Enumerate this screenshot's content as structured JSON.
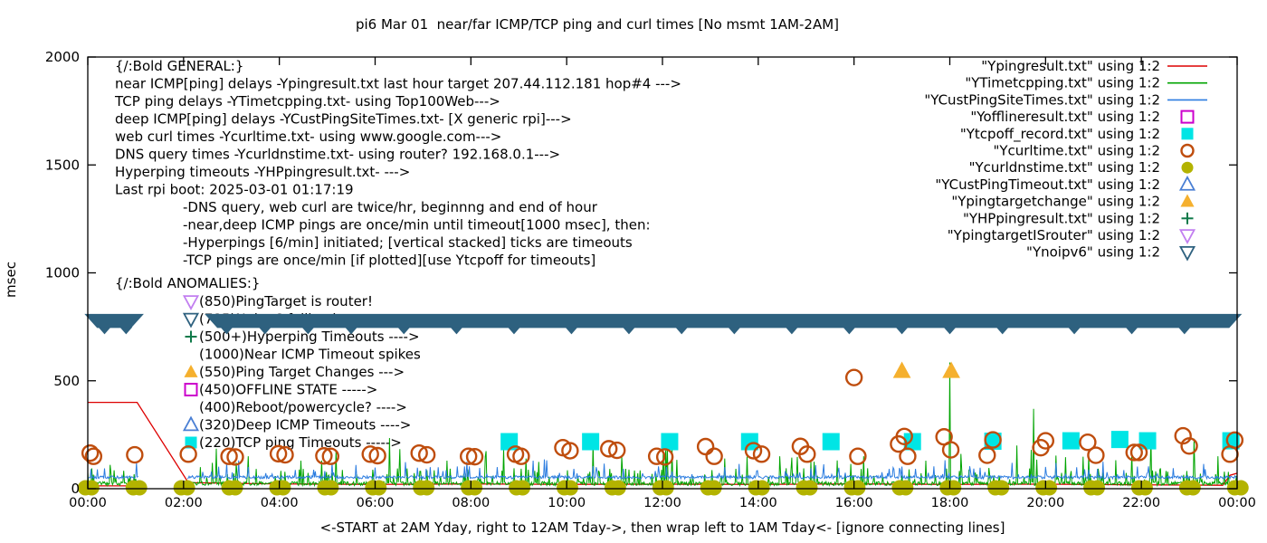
{
  "title": "pi6 Mar 01  near/far ICMP/TCP ping and curl times [No msmt 1AM-2AM]",
  "axes": {
    "ylabel": "msec",
    "xlabel": "<-START at 2AM Yday, right to 12AM Tday->, then wrap left to 1AM Tday<- [ignore connecting lines]",
    "y_ticks": [
      0,
      500,
      1000,
      1500,
      2000
    ],
    "x_tick_labels": [
      "00:00",
      "02:00",
      "04:00",
      "06:00",
      "08:00",
      "10:00",
      "12:00",
      "14:00",
      "16:00",
      "18:00",
      "20:00",
      "22:00",
      "00:00"
    ],
    "x_tick_hours": [
      0,
      2,
      4,
      6,
      8,
      10,
      12,
      14,
      16,
      18,
      20,
      22,
      24
    ]
  },
  "legend": [
    {
      "label": "\"Ypingresult.txt\" using 1:2",
      "marker": "line",
      "color": "#dd0000"
    },
    {
      "label": "\"YTimetcpping.txt\" using 1:2",
      "marker": "line",
      "color": "#00a400"
    },
    {
      "label": "\"YCustPingSiteTimes.txt\" using 1:2",
      "marker": "line",
      "color": "#2b7ce0"
    },
    {
      "label": "\"Yofflineresult.txt\" using 1:2",
      "marker": "square-open",
      "color": "#cc00cc"
    },
    {
      "label": "\"Ytcpoff_record.txt\" using 1:2",
      "marker": "square-fill",
      "color": "#00e5e5"
    },
    {
      "label": "\"Ycurltime.txt\" using 1:2",
      "marker": "circle-open",
      "color": "#bf4d0d"
    },
    {
      "label": "\"Ycurldnstime.txt\" using 1:2",
      "marker": "circle-fill",
      "color": "#b3b300"
    },
    {
      "label": "\"YCustPingTimeout.txt\" using 1:2",
      "marker": "tri-up-open",
      "color": "#4a7fd4"
    },
    {
      "label": "\"Ypingtargetchange\" using 1:2",
      "marker": "tri-up-fill",
      "color": "#f5b02e"
    },
    {
      "label": "\"YHPpingresult.txt\" using 1:2",
      "marker": "plus",
      "color": "#0f7a4a"
    },
    {
      "label": "\"YpingtargetISrouter\" using 1:2",
      "marker": "tri-down-open",
      "color": "#c27ff0"
    },
    {
      "label": "\"Ynoipv6\" using 1:2",
      "marker": "tri-down-open",
      "color": "#2e617f"
    }
  ],
  "notes_general": {
    "header": "{/:Bold GENERAL:}",
    "lines": [
      "near ICMP[ping] delays -Ypingresult.txt last hour target 207.44.112.181 hop#4 --->",
      "TCP ping delays -YTimetcpping.txt- using Top100Web--->",
      "deep ICMP[ping] delays -YCustPingSiteTimes.txt- [X generic rpi]--->",
      "web curl times -Ycurltime.txt- using www.google.com--->",
      "DNS query times -Ycurldnstime.txt- using router? 192.168.0.1--->",
      "Hyperping timeouts -YHPpingresult.txt- --->",
      "Last rpi boot: 2025-03-01 01:17:19"
    ],
    "sub_lines": [
      "-DNS query, web curl are twice/hr, beginnng and end of hour",
      "-near,deep ICMP pings are once/min until timeout[1000 msec], then:",
      "  -Hyperpings [6/min] initiated; [vertical stacked] ticks are timeouts",
      "-TCP pings are once/min [if plotted][use Ytcpoff for timeouts]"
    ]
  },
  "notes_anomalies": {
    "header": "{/:Bold ANOMALIES:}",
    "items": [
      {
        "marker": "tri-down-open",
        "color": "#c27ff0",
        "text": "(850)PingTarget is router!"
      },
      {
        "marker": "tri-down-open",
        "color": "#2e617f",
        "text": "(785)Noipv6 fallback",
        "obscured_by_band": true
      },
      {
        "marker": "plus",
        "color": "#0f7a4a",
        "text": "(500+)Hyperping Timeouts ---->"
      },
      {
        "marker": "none",
        "color": "#000000",
        "text": "(1000)Near ICMP Timeout spikes"
      },
      {
        "marker": "tri-up-fill",
        "color": "#f5b02e",
        "text": "(550)Ping Target Changes --->"
      },
      {
        "marker": "square-open",
        "color": "#cc00cc",
        "text": "(450)OFFLINE STATE ----->"
      },
      {
        "marker": "none",
        "color": "#000000",
        "text": "(400)Reboot/powercycle? ---->"
      },
      {
        "marker": "tri-up-open",
        "color": "#4a7fd4",
        "text": "(320)Deep ICMP Timeouts ---->"
      },
      {
        "marker": "square-fill",
        "color": "#00e5e5",
        "text": "(220)TCP ping Timeouts ----->"
      }
    ]
  },
  "chart_data": {
    "type": "line",
    "x_unit": "hours (00:00 - 24:00)",
    "xlim": [
      0,
      24
    ],
    "ylim": [
      0,
      2000
    ],
    "grid": false,
    "legend_position": "top-right",
    "no_measurement_gap_hours": [
      1.05,
      2.08
    ],
    "noise_seed": 7,
    "series": [
      {
        "name": "Ypingresult.txt",
        "style": "line",
        "color": "#dd0000",
        "points": [
          [
            0,
            400
          ],
          [
            1.03,
            400
          ],
          [
            2.1,
            28
          ],
          [
            4,
            22
          ],
          [
            6,
            20
          ],
          [
            8,
            22
          ],
          [
            10,
            20
          ],
          [
            12,
            21
          ],
          [
            14,
            20
          ],
          [
            16,
            22
          ],
          [
            18,
            20
          ],
          [
            20,
            21
          ],
          [
            22,
            18
          ],
          [
            23.7,
            16
          ],
          [
            23.85,
            62
          ],
          [
            24,
            72
          ]
        ],
        "baseline_extra": [
          [
            0,
            13
          ],
          [
            1.0,
            13
          ]
        ]
      },
      {
        "name": "YTimetcpping.txt",
        "style": "noisy-line",
        "color": "#00a400",
        "noise": {
          "base": 15,
          "jitter": 18,
          "spike_prob": 0.1,
          "spike_base": 40,
          "spike_jitter": 55,
          "burst_prob": 0.015,
          "burst_base": 90,
          "burst_jitter": 100
        },
        "spikes": [
          [
            2.6,
            120
          ],
          [
            3.35,
            150
          ],
          [
            4.45,
            130
          ],
          [
            6.3,
            235
          ],
          [
            7.5,
            130
          ],
          [
            8.3,
            148
          ],
          [
            9.15,
            140
          ],
          [
            10.55,
            215
          ],
          [
            11.15,
            150
          ],
          [
            12.1,
            212
          ],
          [
            13.3,
            140
          ],
          [
            14.45,
            150
          ],
          [
            15.1,
            125
          ],
          [
            16.2,
            150
          ],
          [
            17.5,
            130
          ],
          [
            18.0,
            585
          ],
          [
            19.4,
            200
          ],
          [
            19.75,
            370
          ],
          [
            20.9,
            160
          ],
          [
            21.8,
            170
          ],
          [
            22.2,
            235
          ],
          [
            23.1,
            232
          ],
          [
            23.6,
            150
          ]
        ]
      },
      {
        "name": "YCustPingSiteTimes.txt",
        "style": "noisy-line",
        "color": "#2b7ce0",
        "noise": {
          "base": 46,
          "jitter": 14,
          "spike_prob": 0.08,
          "spike_base": 66,
          "spike_jitter": 38,
          "burst_prob": 0.012,
          "burst_base": 95,
          "burst_jitter": 45
        },
        "spikes": [
          [
            2.9,
            120
          ],
          [
            5.6,
            110
          ],
          [
            9.3,
            130
          ],
          [
            13.6,
            115
          ],
          [
            17.9,
            132
          ],
          [
            19.3,
            120
          ],
          [
            21.2,
            125
          ],
          [
            23.3,
            115
          ]
        ]
      },
      {
        "name": "Yofflineresult.txt",
        "style": "points",
        "marker": "square-open",
        "color": "#cc00cc",
        "points": []
      },
      {
        "name": "Ytcpoff_record.txt",
        "style": "points",
        "marker": "square-fill",
        "color": "#00e5e5",
        "size": 19,
        "points": [
          [
            8.8,
            218
          ],
          [
            10.5,
            218
          ],
          [
            12.15,
            218
          ],
          [
            13.82,
            218
          ],
          [
            15.52,
            218
          ],
          [
            17.22,
            218
          ],
          [
            18.9,
            220
          ],
          [
            20.53,
            222
          ],
          [
            21.55,
            228
          ],
          [
            22.13,
            222
          ],
          [
            23.87,
            222
          ]
        ]
      },
      {
        "name": "Ycurltime.txt",
        "style": "points",
        "marker": "circle-open",
        "color": "#bf4d0d",
        "points": [
          [
            0.05,
            165
          ],
          [
            0.12,
            150
          ],
          [
            0.98,
            157
          ],
          [
            2.1,
            160
          ],
          [
            2.95,
            150
          ],
          [
            3.08,
            147
          ],
          [
            3.98,
            162
          ],
          [
            4.12,
            157
          ],
          [
            4.93,
            152
          ],
          [
            5.07,
            150
          ],
          [
            5.9,
            160
          ],
          [
            6.05,
            153
          ],
          [
            6.92,
            165
          ],
          [
            7.08,
            157
          ],
          [
            7.95,
            150
          ],
          [
            8.08,
            148
          ],
          [
            8.93,
            160
          ],
          [
            9.05,
            150
          ],
          [
            9.92,
            190
          ],
          [
            10.07,
            176
          ],
          [
            10.88,
            185
          ],
          [
            11.05,
            178
          ],
          [
            11.88,
            150
          ],
          [
            12.05,
            147
          ],
          [
            12.9,
            195
          ],
          [
            13.08,
            150
          ],
          [
            13.9,
            176
          ],
          [
            14.07,
            160
          ],
          [
            14.88,
            196
          ],
          [
            15.02,
            160
          ],
          [
            16.0,
            515
          ],
          [
            16.08,
            150
          ],
          [
            16.93,
            207
          ],
          [
            17.05,
            242
          ],
          [
            17.12,
            150
          ],
          [
            17.88,
            240
          ],
          [
            18.02,
            180
          ],
          [
            18.78,
            155
          ],
          [
            18.9,
            226
          ],
          [
            19.9,
            190
          ],
          [
            20.0,
            222
          ],
          [
            20.88,
            215
          ],
          [
            21.05,
            155
          ],
          [
            21.85,
            168
          ],
          [
            21.95,
            168
          ],
          [
            22.87,
            245
          ],
          [
            23.0,
            198
          ],
          [
            23.85,
            160
          ],
          [
            23.95,
            225
          ]
        ]
      },
      {
        "name": "Ycurldnstime.txt",
        "style": "points",
        "marker": "circle-fill",
        "color": "#b3b300",
        "size": 8,
        "pair_hours": [
          0,
          1,
          2,
          3,
          4,
          5,
          6,
          7,
          8,
          9,
          10,
          11,
          12,
          13,
          14,
          15,
          16,
          17,
          18,
          19,
          20,
          21,
          22,
          23,
          24
        ],
        "pair_offsets": [
          -0.05,
          0.08
        ],
        "value": 4
      },
      {
        "name": "YCustPingTimeout.txt",
        "style": "points",
        "marker": "tri-up-open",
        "color": "#4a7fd4",
        "points": []
      },
      {
        "name": "Ypingtargetchange",
        "style": "points",
        "marker": "tri-up-fill",
        "color": "#f5b02e",
        "points": [
          [
            17.0,
            545
          ],
          [
            18.03,
            545
          ]
        ]
      },
      {
        "name": "YHPpingresult.txt",
        "style": "points",
        "marker": "plus",
        "color": "#0f7a4a",
        "points": []
      },
      {
        "name": "YpingtargetISrouter",
        "style": "points",
        "marker": "tri-down-open",
        "color": "#c27ff0",
        "points": []
      },
      {
        "name": "Ynoipv6",
        "style": "band",
        "marker": "tri-down-open",
        "color": "#2e617f",
        "band": {
          "y_top_msec": 810,
          "y_bottom_msec": 745,
          "segments_hours": [
            [
              -0.07,
              1.17
            ],
            [
              2.44,
              24.1
            ]
          ],
          "tip_hours": [
            0.35,
            0.8,
            2.9,
            3.7,
            4.6,
            5.5,
            6.6,
            7.7,
            8.9,
            10.1,
            11.3,
            12.4,
            13.5,
            14.7,
            15.9,
            17.0,
            18.0,
            19.1,
            20.6,
            21.8,
            22.9
          ]
        }
      }
    ]
  }
}
